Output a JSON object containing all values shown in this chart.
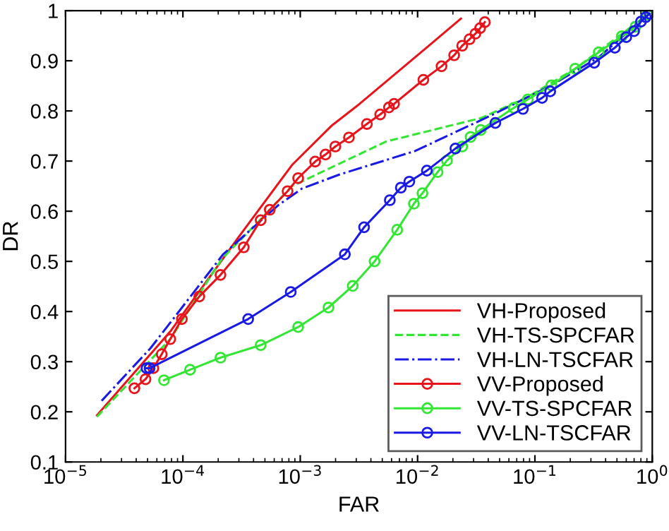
{
  "chart_data": {
    "type": "line",
    "xlabel": "FAR",
    "ylabel": "DR",
    "log": "x",
    "xlim": [
      1e-05,
      1
    ],
    "ylim": [
      0.1,
      1
    ],
    "xticks": [
      {
        "value": 1e-05,
        "label": "10$^{−5}$"
      },
      {
        "value": 0.0001,
        "label": "10$^{−4}$"
      },
      {
        "value": 0.001,
        "label": "10$^{−3}$"
      },
      {
        "value": 0.01,
        "label": "10$^{−2}$"
      },
      {
        "value": 0.1,
        "label": "10$^{−1}$"
      },
      {
        "value": 1,
        "label": "10$^{0}$"
      }
    ],
    "yticks": [
      0.1,
      0.2,
      0.3,
      0.4,
      0.5,
      0.6,
      0.7,
      0.8,
      0.9,
      1
    ],
    "grid": false,
    "legend": "bottom right",
    "series": [
      {
        "name": "VH-Proposed",
        "color": "#e8141b",
        "line_style": "solid",
        "marker": "none",
        "x": [
          1.85e-05,
          7.8e-05,
          0.000295,
          0.00085,
          0.00186,
          0.0032,
          0.0126,
          0.0234
        ],
        "values": [
          0.193,
          0.36,
          0.547,
          0.692,
          0.771,
          0.814,
          0.931,
          0.984
        ]
      },
      {
        "name": "VH-TS-SPCFAR",
        "color": "#33e633",
        "line_style": "dashed",
        "marker": "none",
        "x": [
          1.85e-05,
          7.8e-05,
          0.000215,
          0.00046,
          0.00085,
          0.0054,
          0.035,
          0.087,
          0.22,
          0.91
        ],
        "values": [
          0.19,
          0.345,
          0.505,
          0.584,
          0.65,
          0.739,
          0.786,
          0.828,
          0.884,
          0.992
        ]
      },
      {
        "name": "VH-LN-TSCFAR",
        "color": "#1a1ae6",
        "line_style": "dashdot",
        "marker": "none",
        "x": [
          2.03e-05,
          5.3e-05,
          0.00022,
          0.00065,
          0.00103,
          0.00215,
          0.0095,
          0.046,
          0.138,
          0.35,
          0.91
        ],
        "values": [
          0.222,
          0.327,
          0.514,
          0.612,
          0.645,
          0.673,
          0.72,
          0.795,
          0.851,
          0.907,
          0.992
        ]
      },
      {
        "name": "VV-Proposed",
        "color": "#e8141b",
        "line_style": "solid",
        "marker": "circle",
        "x": [
          3.86e-05,
          4.8e-05,
          5.6e-05,
          6.6e-05,
          7.8e-05,
          9.8e-05,
          0.000138,
          0.000209,
          0.00033,
          0.00046,
          0.00055,
          0.00078,
          0.00096,
          0.00134,
          0.00164,
          0.00199,
          0.0026,
          0.0037,
          0.0048,
          0.0057,
          0.0063,
          0.0112,
          0.016,
          0.0205,
          0.024,
          0.0277,
          0.0311,
          0.0341,
          0.0374
        ],
        "values": [
          0.247,
          0.265,
          0.287,
          0.315,
          0.345,
          0.385,
          0.43,
          0.473,
          0.528,
          0.582,
          0.603,
          0.64,
          0.666,
          0.699,
          0.713,
          0.729,
          0.747,
          0.774,
          0.793,
          0.807,
          0.814,
          0.862,
          0.889,
          0.911,
          0.93,
          0.943,
          0.954,
          0.965,
          0.977
        ]
      },
      {
        "name": "VV-TS-SPCFAR",
        "color": "#33e633",
        "line_style": "solid",
        "marker": "circle",
        "x": [
          6.9e-05,
          0.000115,
          0.000209,
          0.00046,
          0.00096,
          0.00174,
          0.0028,
          0.0043,
          0.0067,
          0.0093,
          0.011,
          0.0148,
          0.0178,
          0.024,
          0.0283,
          0.0345,
          0.066,
          0.087,
          0.138,
          0.22,
          0.35,
          0.55,
          0.72,
          0.91
        ],
        "values": [
          0.263,
          0.284,
          0.308,
          0.333,
          0.369,
          0.408,
          0.451,
          0.5,
          0.563,
          0.615,
          0.636,
          0.678,
          0.701,
          0.729,
          0.748,
          0.762,
          0.806,
          0.823,
          0.851,
          0.884,
          0.917,
          0.949,
          0.968,
          0.992
        ]
      },
      {
        "name": "VV-LN-TSCFAR",
        "color": "#1a1ae6",
        "line_style": "solid",
        "marker": "circle",
        "x": [
          4.9e-05,
          5.2e-05,
          0.00036,
          0.00083,
          0.0024,
          0.0035,
          0.0058,
          0.0072,
          0.0085,
          0.012,
          0.021,
          0.046,
          0.079,
          0.115,
          0.135,
          0.32,
          0.48,
          0.6,
          0.7,
          0.8,
          0.88,
          0.95
        ],
        "values": [
          0.287,
          0.287,
          0.385,
          0.439,
          0.514,
          0.568,
          0.622,
          0.647,
          0.659,
          0.681,
          0.725,
          0.776,
          0.804,
          0.826,
          0.839,
          0.896,
          0.926,
          0.947,
          0.959,
          0.978,
          0.987,
          0.994
        ]
      }
    ]
  }
}
